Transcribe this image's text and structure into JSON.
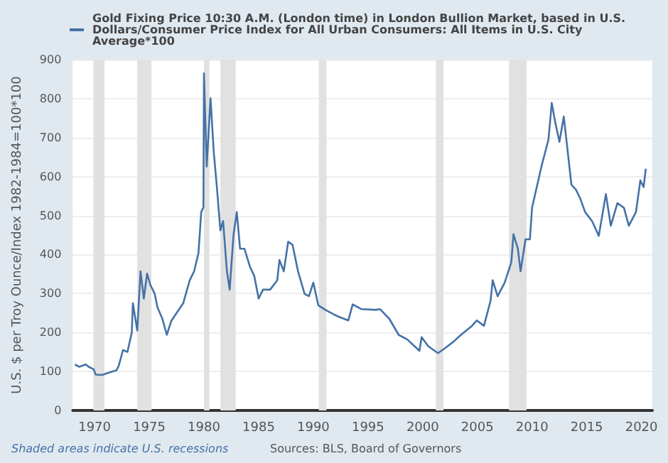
{
  "chart_data": {
    "type": "line",
    "ylabel": "U.S. $ per Troy Ounce/Index 1982-1984=100*100",
    "annotations": [
      "Shaded areas indicate U.S. recessions",
      "Sources: BLS, Board of Governors"
    ],
    "series": [
      {
        "name": "Gold Fixing Price 10:30 A.M. (London time) in London Bullion Market, based in U.S. Dollars/Consumer Price Index for All Urban Consumers: All Items in U.S. City Average*100",
        "color": "#4572a7",
        "x": [
          1968.2,
          1968.6,
          1969.2,
          1969.45,
          1969.9,
          1970.1,
          1970.7,
          1971.3,
          1972.0,
          1972.2,
          1972.6,
          1973.0,
          1973.4,
          1973.5,
          1973.9,
          1974.2,
          1974.5,
          1974.8,
          1975.1,
          1975.5,
          1975.75,
          1976.2,
          1976.6,
          1977.0,
          1977.4,
          1978.1,
          1978.7,
          1979.1,
          1979.5,
          1979.75,
          1979.95,
          1980.0,
          1980.25,
          1980.6,
          1980.9,
          1981.2,
          1981.5,
          1981.75,
          1982.1,
          1982.35,
          1982.7,
          1983.0,
          1983.3,
          1983.7,
          1984.2,
          1984.6,
          1985.0,
          1985.4,
          1986.05,
          1986.7,
          1986.9,
          1987.3,
          1987.7,
          1988.1,
          1988.6,
          1989.2,
          1989.6,
          1990.0,
          1990.45,
          1991.1,
          1991.9,
          1992.35,
          1993.2,
          1993.6,
          1994.4,
          1995.7,
          1996.1,
          1996.95,
          1997.8,
          1998.6,
          1999.7,
          1999.9,
          2000.5,
          2001.4,
          2002.0,
          2002.8,
          2003.5,
          2004.5,
          2004.95,
          2005.6,
          2006.2,
          2006.4,
          2006.85,
          2007.5,
          2008.1,
          2008.3,
          2008.7,
          2008.95,
          2009.4,
          2009.8,
          2010.0,
          2010.85,
          2011.5,
          2011.8,
          2012.1,
          2012.5,
          2012.9,
          2013.6,
          2014.0,
          2014.4,
          2014.85,
          2015.5,
          2016.1,
          2016.75,
          2017.2,
          2017.8,
          2018.4,
          2018.85,
          2019.5,
          2019.9,
          2020.2,
          2020.4
        ],
        "values": [
          118,
          112,
          118,
          112,
          106,
          92,
          91,
          97,
          103,
          114,
          155,
          150,
          200,
          275,
          205,
          357,
          287,
          351,
          322,
          299,
          264,
          235,
          194,
          229,
          246,
          275,
          334,
          357,
          404,
          509,
          521,
          865,
          626,
          801,
          661,
          567,
          462,
          486,
          357,
          310,
          450,
          509,
          415,
          415,
          369,
          345,
          287,
          310,
          310,
          334,
          386,
          357,
          433,
          425,
          357,
          299,
          293,
          328,
          270,
          258,
          246,
          240,
          231,
          272,
          260,
          258,
          260,
          235,
          194,
          182,
          153,
          188,
          165,
          147,
          159,
          176,
          194,
          217,
          231,
          217,
          281,
          334,
          293,
          328,
          380,
          452,
          415,
          357,
          439,
          439,
          520,
          625,
          695,
          789,
          742,
          689,
          754,
          579,
          567,
          544,
          509,
          485,
          448,
          555,
          474,
          532,
          520,
          474,
          509,
          590,
          573,
          620
        ]
      }
    ],
    "xlim": [
      1968,
      2021
    ],
    "xticks": [
      1970,
      1975,
      1980,
      1985,
      1990,
      1995,
      2000,
      2005,
      2010,
      2015,
      2020
    ],
    "ylim": [
      0,
      900
    ],
    "yticks": [
      0,
      100,
      200,
      300,
      400,
      500,
      600,
      700,
      800,
      900
    ],
    "bands": [
      {
        "axis": "x",
        "from": 1969.9,
        "to": 1970.9,
        "color": "#e1e1e1"
      },
      {
        "axis": "x",
        "from": 1973.9,
        "to": 1975.2,
        "color": "#e1e1e1"
      },
      {
        "axis": "x",
        "from": 1980.0,
        "to": 1980.5,
        "color": "#e1e1e1"
      },
      {
        "axis": "x",
        "from": 1981.5,
        "to": 1982.9,
        "color": "#e1e1e1"
      },
      {
        "axis": "x",
        "from": 1990.5,
        "to": 1991.2,
        "color": "#e1e1e1"
      },
      {
        "axis": "x",
        "from": 2001.2,
        "to": 2001.9,
        "color": "#e1e1e1"
      },
      {
        "axis": "x",
        "from": 2007.9,
        "to": 2009.5,
        "color": "#e1e1e1"
      }
    ],
    "grid": "y",
    "legend": "top",
    "marker": "none",
    "line_style": "solid"
  }
}
